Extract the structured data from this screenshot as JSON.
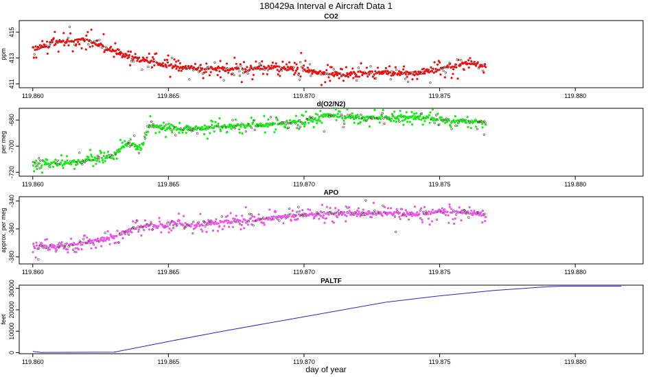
{
  "title": "180429a   Interval e Aircraft Data 1",
  "xlabel": "day of year",
  "chart_data": [
    {
      "type": "scatter",
      "title": "CO2",
      "ylabel": "ppm",
      "color": "#ee1111",
      "xlim": [
        119.8595,
        119.8825
      ],
      "ylim": [
        410.7,
        415.9
      ],
      "xticks": [
        119.86,
        119.865,
        119.87,
        119.875,
        119.88
      ],
      "xtick_labels": [
        "119.860",
        "119.865",
        "119.870",
        "119.875",
        "119.880"
      ],
      "yticks": [
        411,
        413,
        415
      ],
      "ytick_labels": [
        "411",
        "413",
        "415"
      ],
      "x_range": [
        119.86,
        119.8767
      ],
      "anchors_x": [
        119.86,
        119.861,
        119.862,
        119.863,
        119.864,
        119.865,
        119.866,
        119.867,
        119.868,
        119.869,
        119.87,
        119.871,
        119.872,
        119.873,
        119.874,
        119.875,
        119.876,
        119.8767
      ],
      "anchors_y": [
        413.7,
        414.3,
        414.4,
        413.5,
        412.8,
        412.4,
        412.2,
        412.1,
        412.2,
        412.3,
        412.1,
        411.7,
        411.8,
        411.9,
        411.8,
        412.1,
        412.6,
        412.4
      ],
      "noise": 0.45
    },
    {
      "type": "scatter",
      "title": "d(O2/N2)",
      "ylabel": "per meg",
      "color": "#11ee11",
      "xlim": [
        119.8595,
        119.8825
      ],
      "ylim": [
        -723,
        -671
      ],
      "xticks": [
        119.86,
        119.865,
        119.87,
        119.875,
        119.88
      ],
      "xtick_labels": [
        "119.860",
        "119.865",
        "119.870",
        "119.875",
        "119.880"
      ],
      "yticks": [
        -720,
        -700,
        -680
      ],
      "ytick_labels": [
        "-720",
        "-700",
        "-680"
      ],
      "x_range": [
        119.86,
        119.8767
      ],
      "anchors_x": [
        119.86,
        119.861,
        119.862,
        119.863,
        119.8635,
        119.864,
        119.8643,
        119.865,
        119.866,
        119.867,
        119.868,
        119.869,
        119.87,
        119.871,
        119.872,
        119.873,
        119.874,
        119.875,
        119.876,
        119.8767
      ],
      "anchors_y": [
        -714,
        -713,
        -711,
        -707,
        -697,
        -702,
        -684,
        -686,
        -687,
        -685,
        -684,
        -683,
        -681,
        -676,
        -678,
        -678,
        -678,
        -679,
        -681,
        -682
      ],
      "noise": 4
    },
    {
      "type": "scatter",
      "title": "APO",
      "ylabel": "approx. per meg",
      "color": "#ee55ee",
      "xlim": [
        119.8595,
        119.8825
      ],
      "ylim": [
        -385,
        -337
      ],
      "xticks": [
        119.86,
        119.865,
        119.87,
        119.875,
        119.88
      ],
      "xtick_labels": [
        "119.860",
        "119.865",
        "119.870",
        "119.875",
        "119.880"
      ],
      "yticks": [
        -380,
        -360,
        -340
      ],
      "ytick_labels": [
        "-380",
        "-360",
        "-340"
      ],
      "x_range": [
        119.86,
        119.8767
      ],
      "anchors_x": [
        119.86,
        119.861,
        119.862,
        119.863,
        119.864,
        119.865,
        119.866,
        119.867,
        119.868,
        119.869,
        119.87,
        119.871,
        119.872,
        119.873,
        119.874,
        119.875,
        119.876,
        119.8767
      ],
      "anchors_y": [
        -373,
        -372,
        -370,
        -365,
        -358,
        -357,
        -357,
        -355,
        -354,
        -352,
        -350,
        -349,
        -349,
        -349,
        -349,
        -348,
        -348,
        -350
      ],
      "noise": 4
    },
    {
      "type": "line",
      "title": "PALTF",
      "ylabel": "feet",
      "color": "#2222dd",
      "xlim": [
        119.8595,
        119.8825
      ],
      "ylim": [
        -500,
        31500
      ],
      "xticks": [
        119.86,
        119.865,
        119.87,
        119.875,
        119.88
      ],
      "xtick_labels": [
        "119.860",
        "119.865",
        "119.870",
        "119.875",
        "119.880"
      ],
      "yticks": [
        0,
        10000,
        20000,
        30000
      ],
      "ytick_labels": [
        "0",
        "10000",
        "20000",
        "30000"
      ],
      "x": [
        119.86,
        119.8603,
        119.863,
        119.865,
        119.867,
        119.869,
        119.871,
        119.873,
        119.875,
        119.877,
        119.879,
        119.8795,
        119.8817
      ],
      "y": [
        600,
        100,
        200,
        5200,
        10000,
        14500,
        19000,
        23500,
        26500,
        29000,
        30800,
        31000,
        31000
      ]
    }
  ]
}
